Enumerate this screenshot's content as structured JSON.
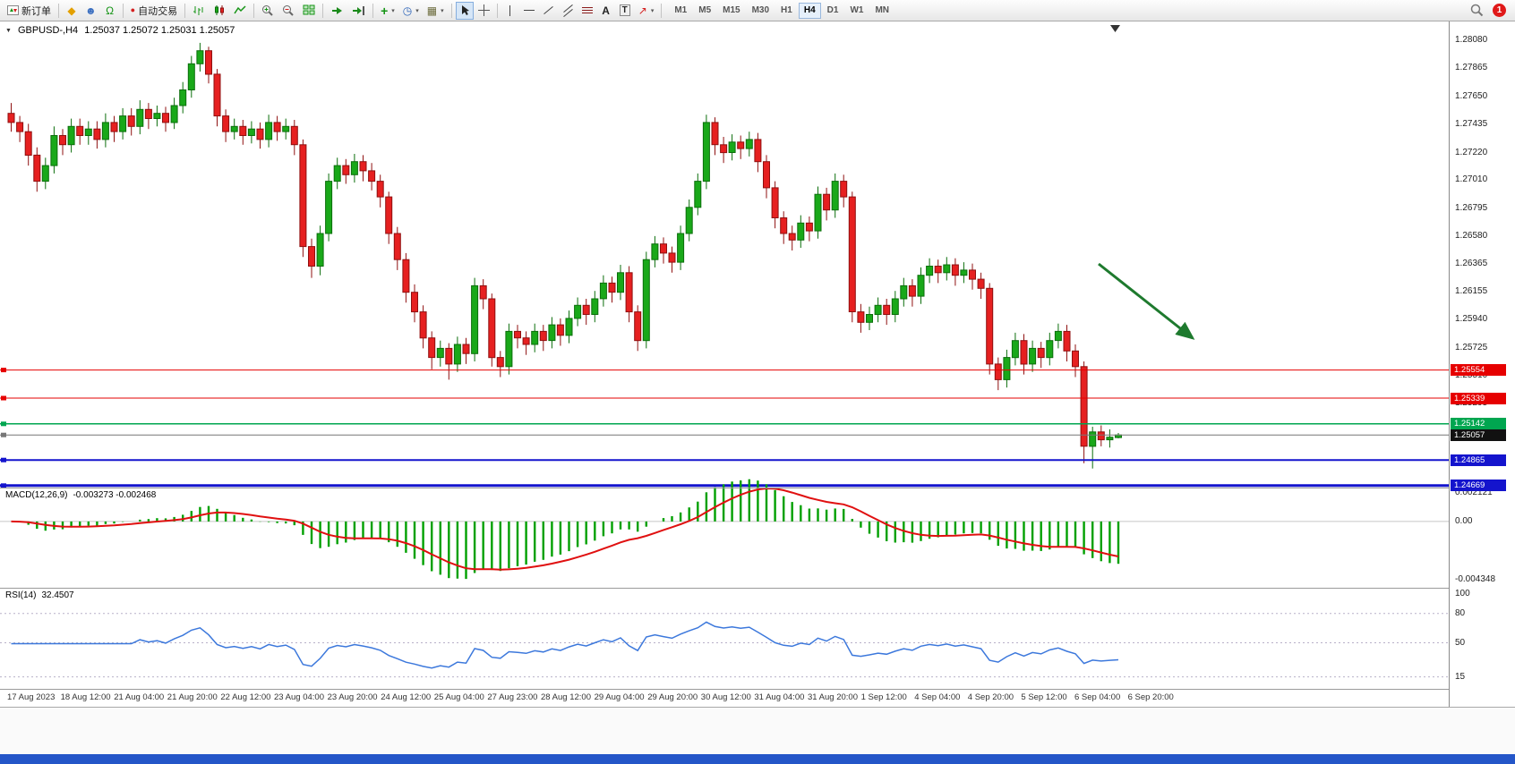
{
  "toolbar": {
    "new_order_label": "新订单",
    "auto_trading_label": "自动交易",
    "text_tool": "A",
    "label_tool": "T",
    "glyphs": {
      "market_watch": "◆",
      "user": "☻",
      "headset": "Ω",
      "auto_dot": "●",
      "indicators_plus": "+",
      "clock": "◷",
      "templates": "▦",
      "arrows": "↗",
      "caret": "▾",
      "collapse": "▼"
    },
    "timeframes": [
      "M1",
      "M5",
      "M15",
      "M30",
      "H1",
      "H4",
      "D1",
      "W1",
      "MN"
    ],
    "active_timeframe": "H4",
    "notification_count": "1"
  },
  "chart": {
    "symbol": "GBPUSD-,H4",
    "ohlc_line": "1.25037 1.25072 1.25031 1.25057",
    "price_axis_labels": [
      "1.28080",
      "1.27865",
      "1.27650",
      "1.27435",
      "1.27220",
      "1.27010",
      "1.26795",
      "1.26580",
      "1.26365",
      "1.26155",
      "1.25940",
      "1.25725",
      "1.25510",
      "1.25295"
    ],
    "hlines": [
      {
        "price": 1.25554,
        "label": "1.25554",
        "color": "#e60000",
        "tag_bg": "#e60000",
        "width": 1
      },
      {
        "price": 1.25339,
        "label": "1.25339",
        "color": "#e60000",
        "tag_bg": "#e60000",
        "width": 1
      },
      {
        "price": 1.25142,
        "label": "1.25142",
        "color": "#00a650",
        "tag_bg": "#00a650",
        "width": 1.5
      },
      {
        "price": 1.25057,
        "label": "1.25057",
        "color": "#777777",
        "tag_bg": "#111111",
        "width": 1
      },
      {
        "price": 1.24865,
        "label": "1.24865",
        "color": "#1414cd",
        "tag_bg": "#1414cd",
        "width": 2
      },
      {
        "price": 1.24669,
        "label": "1.24669",
        "color": "#1414cd",
        "tag_bg": "#1414cd",
        "width": 3
      }
    ],
    "colors": {
      "up_fill": "#19a819",
      "up_stroke": "#0b6e0b",
      "down_fill": "#e62020",
      "down_stroke": "#8f1010",
      "macd_hist": "#00a000",
      "macd_signal": "#e01010",
      "rsi_line": "#3c78dc",
      "arrow": "#1e7a2e"
    }
  },
  "macd": {
    "label": "MACD(12,26,9)",
    "values": "-0.003273 -0.002468",
    "axis": [
      {
        "v": 0.002121,
        "label": "0.002121"
      },
      {
        "v": 0,
        "label": "0.00"
      },
      {
        "v": -0.004348,
        "label": "-0.004348"
      }
    ]
  },
  "rsi": {
    "label": "RSI(14)",
    "value": "32.4507",
    "axis": [
      {
        "v": 100,
        "label": "100"
      },
      {
        "v": 80,
        "label": "80"
      },
      {
        "v": 50,
        "label": "50"
      },
      {
        "v": 15,
        "label": "15"
      }
    ],
    "levels": [
      80,
      50,
      15
    ]
  },
  "chart_data": [
    {
      "type": "candlestick",
      "symbol": "GBPUSD",
      "period": "H4",
      "ylim": [
        1.2465,
        1.2822
      ],
      "x_labels": [
        "17 Aug 2023",
        "18 Aug 12:00",
        "21 Aug 04:00",
        "21 Aug 20:00",
        "22 Aug 12:00",
        "23 Aug 04:00",
        "23 Aug 20:00",
        "24 Aug 12:00",
        "25 Aug 04:00",
        "27 Aug 23:00",
        "28 Aug 12:00",
        "29 Aug 04:00",
        "29 Aug 20:00",
        "30 Aug 12:00",
        "31 Aug 04:00",
        "31 Aug 20:00",
        "1 Sep 12:00",
        "4 Sep 04:00",
        "4 Sep 20:00",
        "5 Sep 12:00",
        "6 Sep 04:00",
        "6 Sep 20:00"
      ],
      "ohlc": [
        [
          1.2752,
          1.276,
          1.2738,
          1.2745
        ],
        [
          1.2745,
          1.275,
          1.273,
          1.2738
        ],
        [
          1.2738,
          1.2744,
          1.2712,
          1.272
        ],
        [
          1.272,
          1.2726,
          1.2692,
          1.27
        ],
        [
          1.27,
          1.2718,
          1.2694,
          1.2712
        ],
        [
          1.2712,
          1.2742,
          1.2706,
          1.2735
        ],
        [
          1.2735,
          1.274,
          1.272,
          1.2728
        ],
        [
          1.2728,
          1.2748,
          1.2722,
          1.2742
        ],
        [
          1.2742,
          1.2748,
          1.2728,
          1.2735
        ],
        [
          1.2735,
          1.2746,
          1.2728,
          1.274
        ],
        [
          1.274,
          1.2746,
          1.2725,
          1.2732
        ],
        [
          1.2732,
          1.2752,
          1.2726,
          1.2745
        ],
        [
          1.2745,
          1.275,
          1.273,
          1.2738
        ],
        [
          1.2738,
          1.2756,
          1.2732,
          1.275
        ],
        [
          1.275,
          1.2756,
          1.2735,
          1.2742
        ],
        [
          1.2742,
          1.2762,
          1.2736,
          1.2755
        ],
        [
          1.2755,
          1.276,
          1.274,
          1.2748
        ],
        [
          1.2748,
          1.2758,
          1.2742,
          1.2752
        ],
        [
          1.2752,
          1.2757,
          1.2738,
          1.2745
        ],
        [
          1.2745,
          1.2764,
          1.274,
          1.2758
        ],
        [
          1.2758,
          1.2776,
          1.2752,
          1.277
        ],
        [
          1.277,
          1.2796,
          1.2764,
          1.279
        ],
        [
          1.279,
          1.2806,
          1.2784,
          1.28
        ],
        [
          1.28,
          1.2803,
          1.2775,
          1.2782
        ],
        [
          1.2782,
          1.2786,
          1.2742,
          1.275
        ],
        [
          1.275,
          1.2755,
          1.273,
          1.2738
        ],
        [
          1.2738,
          1.2748,
          1.2732,
          1.2742
        ],
        [
          1.2742,
          1.2747,
          1.2728,
          1.2735
        ],
        [
          1.2735,
          1.2746,
          1.2729,
          1.274
        ],
        [
          1.274,
          1.2745,
          1.2725,
          1.2732
        ],
        [
          1.2732,
          1.2751,
          1.2726,
          1.2745
        ],
        [
          1.2745,
          1.275,
          1.2731,
          1.2738
        ],
        [
          1.2738,
          1.2748,
          1.2732,
          1.2742
        ],
        [
          1.2742,
          1.2747,
          1.272,
          1.2728
        ],
        [
          1.2728,
          1.2732,
          1.2642,
          1.265
        ],
        [
          1.265,
          1.2656,
          1.2626,
          1.2635
        ],
        [
          1.2635,
          1.2666,
          1.2628,
          1.266
        ],
        [
          1.266,
          1.2706,
          1.2654,
          1.27
        ],
        [
          1.27,
          1.2718,
          1.2694,
          1.2712
        ],
        [
          1.2712,
          1.2717,
          1.2698,
          1.2705
        ],
        [
          1.2705,
          1.2721,
          1.2699,
          1.2715
        ],
        [
          1.2715,
          1.272,
          1.27,
          1.2708
        ],
        [
          1.2708,
          1.2714,
          1.2693,
          1.27
        ],
        [
          1.27,
          1.2705,
          1.268,
          1.2688
        ],
        [
          1.2688,
          1.2692,
          1.2652,
          1.266
        ],
        [
          1.266,
          1.2665,
          1.2632,
          1.264
        ],
        [
          1.264,
          1.2645,
          1.2607,
          1.2615
        ],
        [
          1.2615,
          1.2621,
          1.2592,
          1.26
        ],
        [
          1.26,
          1.2605,
          1.2572,
          1.258
        ],
        [
          1.258,
          1.2585,
          1.2556,
          1.2565
        ],
        [
          1.2565,
          1.2578,
          1.2558,
          1.2572
        ],
        [
          1.2572,
          1.2576,
          1.2548,
          1.256
        ],
        [
          1.256,
          1.2581,
          1.2554,
          1.2575
        ],
        [
          1.2575,
          1.258,
          1.256,
          1.2568
        ],
        [
          1.2568,
          1.2626,
          1.2562,
          1.262
        ],
        [
          1.262,
          1.2625,
          1.2602,
          1.261
        ],
        [
          1.261,
          1.2614,
          1.2558,
          1.2565
        ],
        [
          1.2565,
          1.257,
          1.255,
          1.2558
        ],
        [
          1.2558,
          1.2591,
          1.2552,
          1.2585
        ],
        [
          1.2585,
          1.259,
          1.2572,
          1.258
        ],
        [
          1.258,
          1.2585,
          1.2567,
          1.2575
        ],
        [
          1.2575,
          1.2591,
          1.2569,
          1.2585
        ],
        [
          1.2585,
          1.259,
          1.257,
          1.2578
        ],
        [
          1.2578,
          1.2596,
          1.2572,
          1.259
        ],
        [
          1.259,
          1.2595,
          1.2574,
          1.2582
        ],
        [
          1.2582,
          1.2601,
          1.2576,
          1.2595
        ],
        [
          1.2595,
          1.2611,
          1.2589,
          1.2605
        ],
        [
          1.2605,
          1.261,
          1.259,
          1.2598
        ],
        [
          1.2598,
          1.2616,
          1.2592,
          1.261
        ],
        [
          1.261,
          1.2628,
          1.2604,
          1.2622
        ],
        [
          1.2622,
          1.2627,
          1.2607,
          1.2615
        ],
        [
          1.2615,
          1.2636,
          1.2609,
          1.263
        ],
        [
          1.263,
          1.2635,
          1.2592,
          1.26
        ],
        [
          1.26,
          1.2605,
          1.257,
          1.2578
        ],
        [
          1.2578,
          1.2646,
          1.2572,
          1.264
        ],
        [
          1.264,
          1.2658,
          1.2634,
          1.2652
        ],
        [
          1.2652,
          1.2657,
          1.2637,
          1.2645
        ],
        [
          1.2645,
          1.265,
          1.263,
          1.2638
        ],
        [
          1.2638,
          1.2666,
          1.2632,
          1.266
        ],
        [
          1.266,
          1.2686,
          1.2654,
          1.268
        ],
        [
          1.268,
          1.2706,
          1.2674,
          1.27
        ],
        [
          1.27,
          1.2751,
          1.2694,
          1.2745
        ],
        [
          1.2745,
          1.2749,
          1.272,
          1.2728
        ],
        [
          1.2728,
          1.2734,
          1.2714,
          1.2722
        ],
        [
          1.2722,
          1.2736,
          1.2716,
          1.273
        ],
        [
          1.273,
          1.2735,
          1.2717,
          1.2725
        ],
        [
          1.2725,
          1.2738,
          1.2719,
          1.2732
        ],
        [
          1.2732,
          1.2737,
          1.2707,
          1.2715
        ],
        [
          1.2715,
          1.272,
          1.2687,
          1.2695
        ],
        [
          1.2695,
          1.27,
          1.2664,
          1.2672
        ],
        [
          1.2672,
          1.2677,
          1.2652,
          1.266
        ],
        [
          1.266,
          1.2666,
          1.2647,
          1.2655
        ],
        [
          1.2655,
          1.2674,
          1.2649,
          1.2668
        ],
        [
          1.2668,
          1.2673,
          1.2654,
          1.2662
        ],
        [
          1.2662,
          1.2696,
          1.2656,
          1.269
        ],
        [
          1.269,
          1.2695,
          1.267,
          1.2678
        ],
        [
          1.2678,
          1.2706,
          1.2672,
          1.27
        ],
        [
          1.27,
          1.2705,
          1.268,
          1.2688
        ],
        [
          1.2688,
          1.2692,
          1.2592,
          1.26
        ],
        [
          1.26,
          1.2606,
          1.2584,
          1.2592
        ],
        [
          1.2592,
          1.2604,
          1.2586,
          1.2598
        ],
        [
          1.2598,
          1.2611,
          1.2592,
          1.2605
        ],
        [
          1.2605,
          1.261,
          1.259,
          1.2598
        ],
        [
          1.2598,
          1.2616,
          1.2592,
          1.261
        ],
        [
          1.261,
          1.2626,
          1.2604,
          1.262
        ],
        [
          1.262,
          1.2625,
          1.2604,
          1.2612
        ],
        [
          1.2612,
          1.2634,
          1.2606,
          1.2628
        ],
        [
          1.2628,
          1.2641,
          1.2622,
          1.2635
        ],
        [
          1.2635,
          1.264,
          1.2622,
          1.263
        ],
        [
          1.263,
          1.2642,
          1.2624,
          1.2636
        ],
        [
          1.2636,
          1.2641,
          1.262,
          1.2628
        ],
        [
          1.2628,
          1.2638,
          1.2622,
          1.2632
        ],
        [
          1.2632,
          1.2637,
          1.2617,
          1.2625
        ],
        [
          1.2625,
          1.263,
          1.261,
          1.2618
        ],
        [
          1.2618,
          1.2622,
          1.2552,
          1.256
        ],
        [
          1.256,
          1.2565,
          1.254,
          1.2548
        ],
        [
          1.2548,
          1.2571,
          1.2542,
          1.2565
        ],
        [
          1.2565,
          1.2584,
          1.2559,
          1.2578
        ],
        [
          1.2578,
          1.2583,
          1.2552,
          1.256
        ],
        [
          1.256,
          1.2578,
          1.2554,
          1.2572
        ],
        [
          1.2572,
          1.2577,
          1.2557,
          1.2565
        ],
        [
          1.2565,
          1.2584,
          1.2559,
          1.2578
        ],
        [
          1.2578,
          1.2591,
          1.2572,
          1.2585
        ],
        [
          1.2585,
          1.259,
          1.2562,
          1.257
        ],
        [
          1.257,
          1.2575,
          1.255,
          1.2558
        ],
        [
          1.2558,
          1.2562,
          1.2484,
          1.2497
        ],
        [
          1.2497,
          1.2512,
          1.248,
          1.2508
        ],
        [
          1.2508,
          1.2513,
          1.2497,
          1.2502
        ],
        [
          1.2502,
          1.251,
          1.2496,
          1.2504
        ],
        [
          1.25037,
          1.25072,
          1.25031,
          1.25057
        ]
      ]
    },
    {
      "type": "macd",
      "params": [
        12,
        26,
        9
      ],
      "current": [
        -0.003273,
        -0.002468
      ],
      "ylim": [
        -0.004348,
        0.002121
      ]
    },
    {
      "type": "rsi",
      "period": 14,
      "current": 32.4507,
      "ylim": [
        0,
        100
      ],
      "levels": [
        80,
        50,
        15
      ]
    }
  ]
}
